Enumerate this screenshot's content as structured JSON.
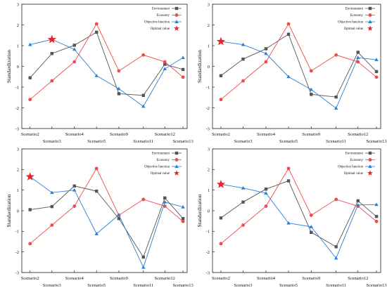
{
  "shared": {
    "categories": [
      "Scenario2",
      "Scenario3",
      "Scenario4",
      "Scenario5",
      "Scenario9",
      "Scenario11",
      "Scenario12",
      "Scenario13"
    ],
    "ylabel": "Standardization",
    "yticks": [
      -3,
      -2,
      -1,
      0,
      1,
      2,
      3
    ],
    "legend": [
      "Environment",
      "Economy",
      "Objective function",
      "Optimal value"
    ],
    "colors": {
      "environment": "#555555",
      "economy": "#f04a4a",
      "objective": "#2c7fd6",
      "optimal": "#e8232a"
    }
  },
  "chart_data": [
    {
      "type": "line",
      "panel": "top-left",
      "categories": [
        "Scenario2",
        "Scenario3",
        "Scenario4",
        "Scenario5",
        "Scenario9",
        "Scenario11",
        "Scenario12",
        "Scenario13"
      ],
      "ylabel": "Standardization",
      "ylim": [
        -3,
        3
      ],
      "grid": false,
      "legend_position": "top-right",
      "series": [
        {
          "name": "Environment",
          "marker": "square",
          "values": [
            -0.55,
            0.62,
            1.02,
            1.65,
            -1.32,
            -1.4,
            0.1,
            -0.15
          ]
        },
        {
          "name": "Economy",
          "marker": "circle",
          "values": [
            -1.6,
            -0.7,
            0.22,
            2.05,
            -0.22,
            0.55,
            0.22,
            -0.52
          ]
        },
        {
          "name": "Objective function",
          "marker": "triangle",
          "values": [
            1.05,
            1.3,
            0.82,
            -0.45,
            -1.08,
            -1.93,
            -0.12,
            0.42
          ]
        }
      ],
      "optimal": {
        "name": "Optimal value",
        "category": "Scenario3",
        "value": 1.3
      }
    },
    {
      "type": "line",
      "panel": "top-right",
      "categories": [
        "Scenario2",
        "Scenario3",
        "Scenario4",
        "Scenario5",
        "Scenario9",
        "Scenario11",
        "Scenario12",
        "Scenario13"
      ],
      "ylabel": "Standardization",
      "ylim": [
        -3,
        3
      ],
      "grid": false,
      "legend_position": "top-right",
      "series": [
        {
          "name": "Environment",
          "marker": "square",
          "values": [
            -0.45,
            0.35,
            0.85,
            1.55,
            -1.35,
            -1.48,
            0.68,
            -0.25
          ]
        },
        {
          "name": "Economy",
          "marker": "circle",
          "values": [
            -1.6,
            -0.7,
            0.22,
            2.05,
            -0.22,
            0.55,
            0.22,
            -0.52
          ]
        },
        {
          "name": "Objective function",
          "marker": "triangle",
          "values": [
            1.2,
            1.05,
            0.62,
            -0.5,
            -1.12,
            -2.02,
            0.42,
            0.32
          ]
        }
      ],
      "optimal": {
        "name": "Optimal value",
        "category": "Scenario2",
        "value": 1.2
      }
    },
    {
      "type": "line",
      "panel": "bottom-left",
      "categories": [
        "Scenario2",
        "Scenario3",
        "Scenario4",
        "Scenario5",
        "Scenario9",
        "Scenario11",
        "Scenario12",
        "Scenario13"
      ],
      "ylabel": "Standardization",
      "ylim": [
        -3,
        3
      ],
      "grid": false,
      "legend_position": "top-right",
      "series": [
        {
          "name": "Environment",
          "marker": "square",
          "values": [
            0.05,
            0.2,
            1.2,
            0.95,
            -0.38,
            -2.25,
            0.62,
            -0.38
          ]
        },
        {
          "name": "Economy",
          "marker": "circle",
          "values": [
            -1.6,
            -0.7,
            0.22,
            2.05,
            -0.22,
            0.55,
            0.22,
            -0.52
          ]
        },
        {
          "name": "Objective function",
          "marker": "triangle",
          "values": [
            1.65,
            0.88,
            1.0,
            -1.12,
            -0.2,
            -2.75,
            0.42,
            0.18
          ]
        }
      ],
      "optimal": {
        "name": "Optimal value",
        "category": "Scenario2",
        "value": 1.65
      }
    },
    {
      "type": "line",
      "panel": "bottom-right",
      "categories": [
        "Scenario2",
        "Scenario3",
        "Scenario4",
        "Scenario5",
        "Scenario9",
        "Scenario11",
        "Scenario12",
        "Scenario13"
      ],
      "ylabel": "Standardization",
      "ylim": [
        -3,
        3
      ],
      "grid": false,
      "legend_position": "top-right",
      "series": [
        {
          "name": "Environment",
          "marker": "square",
          "values": [
            -0.35,
            0.42,
            1.05,
            1.45,
            -1.05,
            -1.75,
            0.48,
            -0.28
          ]
        },
        {
          "name": "Economy",
          "marker": "circle",
          "values": [
            -1.6,
            -0.7,
            0.22,
            2.05,
            -0.22,
            0.55,
            0.22,
            -0.52
          ]
        },
        {
          "name": "Objective function",
          "marker": "triangle",
          "values": [
            1.28,
            1.1,
            0.85,
            -0.6,
            -0.78,
            -2.3,
            0.28,
            0.3
          ]
        }
      ],
      "optimal": {
        "name": "Optimal value",
        "category": "Scenario2",
        "value": 1.28
      }
    }
  ]
}
